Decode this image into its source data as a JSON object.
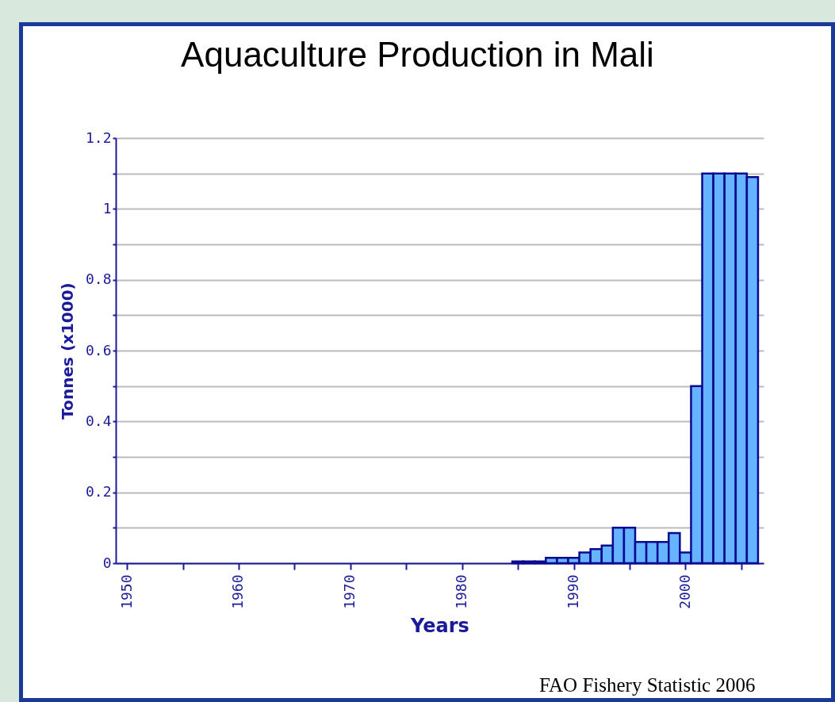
{
  "chart_data": {
    "type": "bar",
    "title": "Aquaculture Production in Mali",
    "xlabel": "Years",
    "ylabel": "Tonnes (x1000)",
    "x": [
      1985,
      1986,
      1987,
      1988,
      1989,
      1990,
      1991,
      1992,
      1993,
      1994,
      1995,
      1996,
      1997,
      1998,
      1999,
      2000,
      2001,
      2002,
      2003,
      2004,
      2005,
      2006
    ],
    "values": [
      0.005,
      0.005,
      0.005,
      0.015,
      0.015,
      0.015,
      0.03,
      0.04,
      0.05,
      0.1,
      0.1,
      0.06,
      0.06,
      0.06,
      0.085,
      0.03,
      0.5,
      1.1,
      1.1,
      1.1,
      1.1,
      1.09
    ],
    "color": "#66b3ff",
    "xlim": [
      1949,
      2007
    ],
    "xticks": [
      1950,
      {
        "value": 1955,
        "label": null
      },
      1960,
      {
        "value": 1965,
        "label": null
      },
      1970,
      {
        "value": 1975,
        "label": null
      },
      1980,
      {
        "value": 1985,
        "label": null
      },
      1990,
      {
        "value": 1995,
        "label": null
      },
      2000,
      {
        "value": 2005,
        "label": null
      }
    ],
    "ylim": [
      0,
      1.2
    ],
    "yticks": [
      0,
      {
        "value": 0.1,
        "label": null
      },
      0.2,
      {
        "value": 0.3,
        "label": null
      },
      0.4,
      {
        "value": 0.5,
        "label": null
      },
      0.6,
      {
        "value": 0.7,
        "label": null
      },
      0.8,
      {
        "value": 0.9,
        "label": null
      },
      1,
      {
        "value": 1.1,
        "label": null
      },
      1.2
    ],
    "grid": "y",
    "annotations": [
      "FAO Fishery Statistic 2006"
    ]
  }
}
